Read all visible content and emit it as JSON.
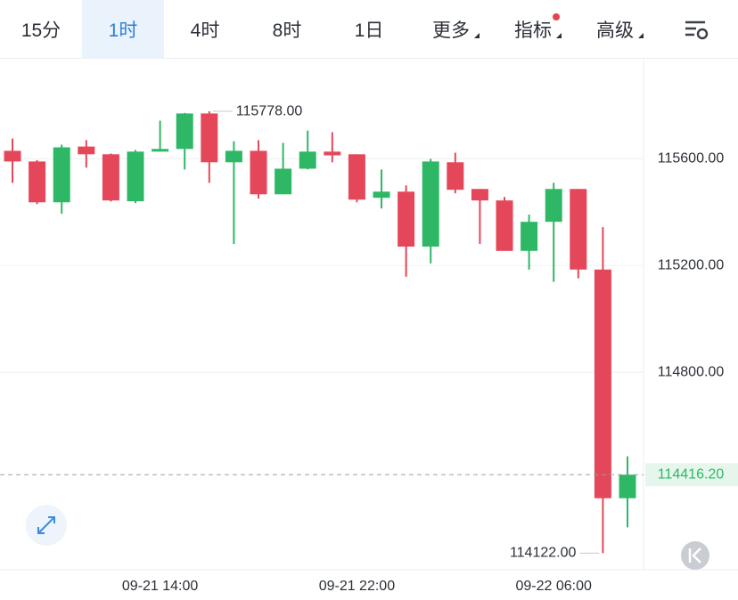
{
  "toolbar": {
    "tabs": [
      "15分",
      "1时",
      "4时",
      "8时",
      "1日",
      "更多",
      "指标",
      "高级"
    ]
  },
  "chart_data": {
    "type": "candlestick",
    "categories": [
      null,
      null,
      null,
      null,
      null,
      null,
      "09-21 14:00",
      null,
      null,
      null,
      null,
      null,
      null,
      null,
      "09-21 22:00",
      null,
      null,
      null,
      null,
      null,
      null,
      null,
      "09-22 06:00",
      null,
      null,
      null
    ],
    "open": [
      115630,
      115590,
      115437,
      115646,
      115617,
      115441,
      115627,
      115637,
      115770,
      115587,
      115630,
      115467,
      115563,
      115627,
      115617,
      115454,
      115477,
      115271,
      115587,
      115487,
      115444,
      115255,
      115364,
      115487,
      115185,
      114328
    ],
    "high": [
      115676,
      115595,
      115653,
      115670,
      115620,
      115633,
      115743,
      115772,
      115778,
      115666,
      115670,
      115660,
      115706,
      115700,
      115617,
      115560,
      115500,
      115600,
      115623,
      115487,
      115457,
      115391,
      115510,
      115487,
      115344,
      114485
    ],
    "low": [
      115510,
      115430,
      115394,
      115567,
      115440,
      115434,
      115627,
      115560,
      115510,
      115281,
      115451,
      115467,
      115560,
      115587,
      115437,
      115414,
      115158,
      115208,
      115471,
      115281,
      115255,
      115185,
      115139,
      115152,
      114122,
      114219
    ],
    "close": [
      115590,
      115437,
      115643,
      115617,
      115444,
      115627,
      115637,
      115770,
      115587,
      115630,
      115467,
      115563,
      115627,
      115613,
      115447,
      115477,
      115271,
      115590,
      115484,
      115444,
      115255,
      115364,
      115487,
      115185,
      114328,
      114416.2
    ],
    "up_color": "#2eb865",
    "down_color": "#e5475a",
    "ylim": [
      114060,
      115975
    ],
    "yticks": [
      {
        "value": 115600,
        "label": "115600.00"
      },
      {
        "value": 115200,
        "label": "115200.00"
      },
      {
        "value": 114800,
        "label": "114800.00"
      }
    ],
    "grid": true,
    "max_label": {
      "value": 115778,
      "label": "115778.00"
    },
    "min_label": {
      "value": 114122,
      "label": "114122.00"
    },
    "last_price": {
      "value": 114416.2,
      "label": "114416.20"
    }
  }
}
